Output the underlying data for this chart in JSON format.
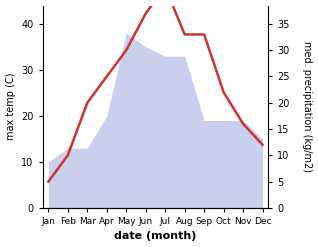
{
  "months": [
    "Jan",
    "Feb",
    "Mar",
    "Apr",
    "May",
    "Jun",
    "Jul",
    "Aug",
    "Sep",
    "Oct",
    "Nov",
    "Dec"
  ],
  "temp": [
    10,
    13,
    13,
    20,
    38,
    35,
    33,
    33,
    19,
    19,
    19,
    15
  ],
  "precip": [
    5,
    10,
    20,
    25,
    30,
    37,
    42,
    33,
    33,
    22,
    16,
    12
  ],
  "temp_fill_color": "#c8d0ee",
  "precip_color": "#cc3333",
  "temp_ylim": [
    0,
    44
  ],
  "precip_ylim": [
    0,
    38.5
  ],
  "temp_yticks": [
    0,
    10,
    20,
    30,
    40
  ],
  "precip_yticks": [
    0,
    5,
    10,
    15,
    20,
    25,
    30,
    35
  ],
  "xlabel": "date (month)",
  "ylabel_left": "max temp (C)",
  "ylabel_right": "med. precipitation (kg/m2)",
  "background_color": "#ffffff"
}
